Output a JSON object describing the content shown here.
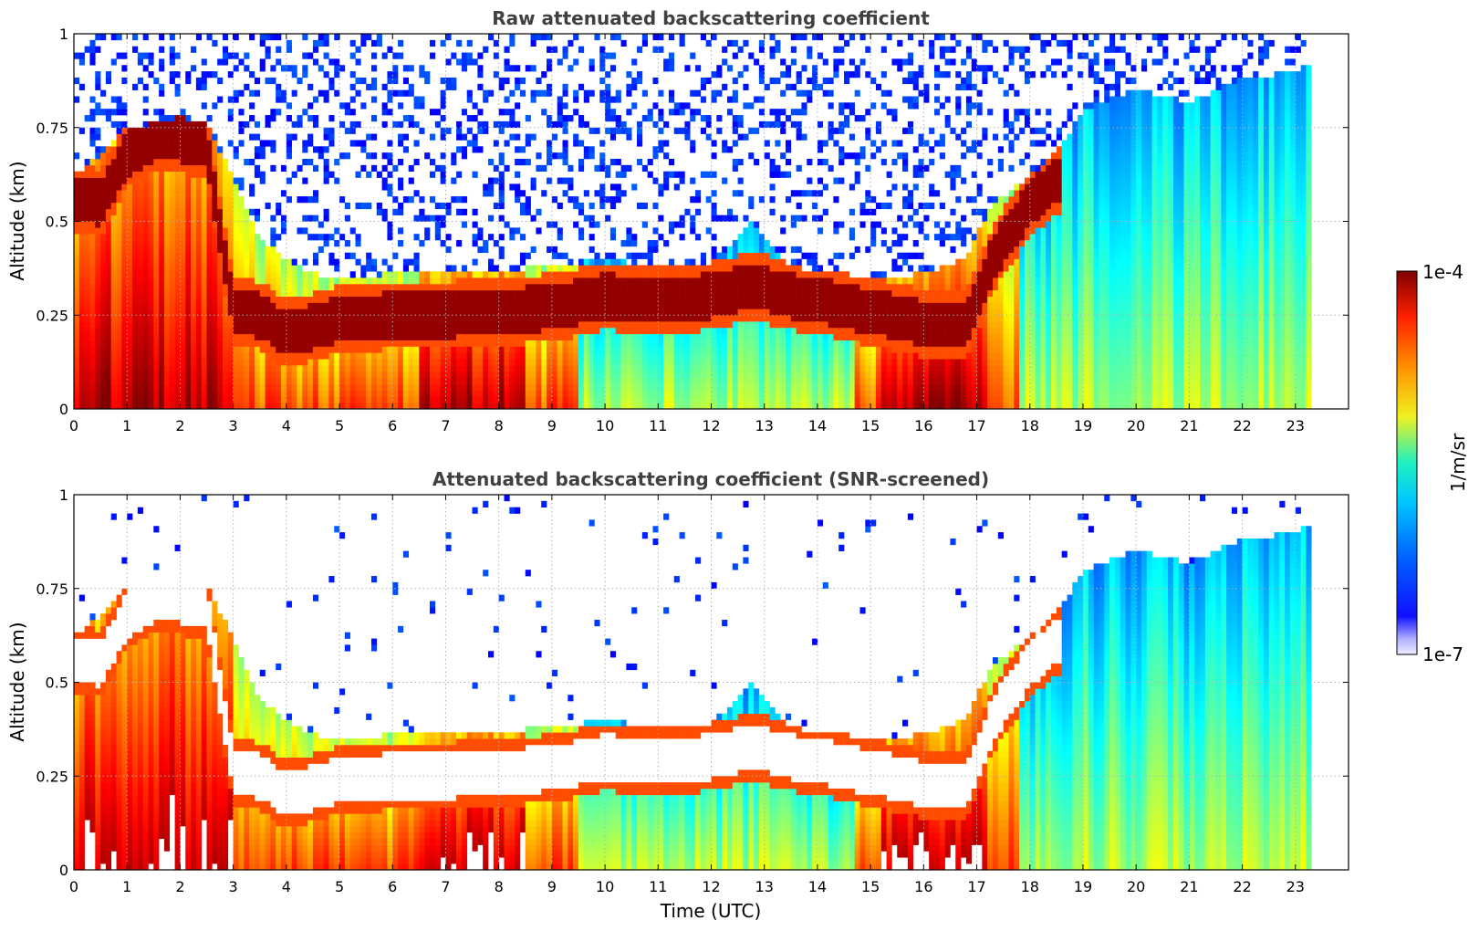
{
  "chart_data": [
    {
      "type": "heatmap",
      "title": "Raw attenuated backscattering coefficient",
      "xlabel": "",
      "ylabel": "Altitude (km)",
      "xlim": [
        0,
        24
      ],
      "ylim": [
        0,
        1
      ],
      "xticks": [
        "0",
        "1",
        "2",
        "3",
        "4",
        "5",
        "6",
        "7",
        "8",
        "9",
        "10",
        "11",
        "12",
        "13",
        "14",
        "15",
        "16",
        "17",
        "18",
        "19",
        "20",
        "21",
        "22",
        "23"
      ],
      "yticks": [
        "0",
        "0.25",
        "0.5",
        "0.75",
        "1"
      ],
      "grid": true,
      "data_end_time": 23.3,
      "layer_top_km": [
        {
          "x": 0,
          "y": 0.62
        },
        {
          "x": 0.5,
          "y": 0.68
        },
        {
          "x": 1,
          "y": 0.75
        },
        {
          "x": 1.5,
          "y": 0.76
        },
        {
          "x": 2,
          "y": 0.78
        },
        {
          "x": 2.5,
          "y": 0.76
        },
        {
          "x": 3,
          "y": 0.62
        },
        {
          "x": 3.5,
          "y": 0.45
        },
        {
          "x": 4,
          "y": 0.4
        },
        {
          "x": 4.5,
          "y": 0.36
        },
        {
          "x": 5,
          "y": 0.35
        },
        {
          "x": 6,
          "y": 0.36
        },
        {
          "x": 7,
          "y": 0.36
        },
        {
          "x": 8,
          "y": 0.37
        },
        {
          "x": 9,
          "y": 0.38
        },
        {
          "x": 10,
          "y": 0.4
        },
        {
          "x": 11,
          "y": 0.38
        },
        {
          "x": 12,
          "y": 0.39
        },
        {
          "x": 12.8,
          "y": 0.5
        },
        {
          "x": 13.5,
          "y": 0.38
        },
        {
          "x": 14,
          "y": 0.37
        },
        {
          "x": 15,
          "y": 0.35
        },
        {
          "x": 16,
          "y": 0.36
        },
        {
          "x": 16.8,
          "y": 0.4
        },
        {
          "x": 17.3,
          "y": 0.55
        },
        {
          "x": 18,
          "y": 0.62
        },
        {
          "x": 18.6,
          "y": 0.7
        },
        {
          "x": 19,
          "y": 0.8
        },
        {
          "x": 20,
          "y": 0.85
        },
        {
          "x": 21,
          "y": 0.82
        },
        {
          "x": 22,
          "y": 0.88
        },
        {
          "x": 23,
          "y": 0.9
        },
        {
          "x": 23.3,
          "y": 0.92
        }
      ],
      "strong_layer_km": [
        {
          "x": 0,
          "y": 0.56
        },
        {
          "x": 0.5,
          "y": 0.55
        },
        {
          "x": 1,
          "y": 0.68
        },
        {
          "x": 1.5,
          "y": 0.72
        },
        {
          "x": 2,
          "y": 0.72
        },
        {
          "x": 2.5,
          "y": 0.7
        },
        {
          "x": 3,
          "y": 0.26
        },
        {
          "x": 3.5,
          "y": 0.25
        },
        {
          "x": 4,
          "y": 0.2
        },
        {
          "x": 4.5,
          "y": 0.22
        },
        {
          "x": 5,
          "y": 0.24
        },
        {
          "x": 6,
          "y": 0.25
        },
        {
          "x": 7,
          "y": 0.25
        },
        {
          "x": 8,
          "y": 0.26
        },
        {
          "x": 9,
          "y": 0.27
        },
        {
          "x": 10,
          "y": 0.3
        },
        {
          "x": 11,
          "y": 0.29
        },
        {
          "x": 12,
          "y": 0.3
        },
        {
          "x": 12.8,
          "y": 0.33
        },
        {
          "x": 13.5,
          "y": 0.3
        },
        {
          "x": 14,
          "y": 0.29
        },
        {
          "x": 15,
          "y": 0.26
        },
        {
          "x": 16,
          "y": 0.23
        },
        {
          "x": 16.8,
          "y": 0.22
        },
        {
          "x": 17.3,
          "y": 0.4
        },
        {
          "x": 18,
          "y": 0.55
        },
        {
          "x": 18.6,
          "y": 0.62
        }
      ]
    },
    {
      "type": "heatmap",
      "title": "Attenuated backscattering coefficient (SNR-screened)",
      "xlabel": "Time (UTC)",
      "ylabel": "Altitude (km)",
      "xlim": [
        0,
        24
      ],
      "ylim": [
        0,
        1
      ],
      "xticks": [
        "0",
        "1",
        "2",
        "3",
        "4",
        "5",
        "6",
        "7",
        "8",
        "9",
        "10",
        "11",
        "12",
        "13",
        "14",
        "15",
        "16",
        "17",
        "18",
        "19",
        "20",
        "21",
        "22",
        "23"
      ],
      "yticks": [
        "0",
        "0.25",
        "0.5",
        "0.75",
        "1"
      ],
      "grid": true,
      "data_end_time": 23.3,
      "screened": true
    }
  ],
  "colorbar": {
    "label": "1/m/sr",
    "max_label": "1e-4",
    "min_label": "1e-7",
    "scale": "log",
    "colormap": "jet"
  }
}
